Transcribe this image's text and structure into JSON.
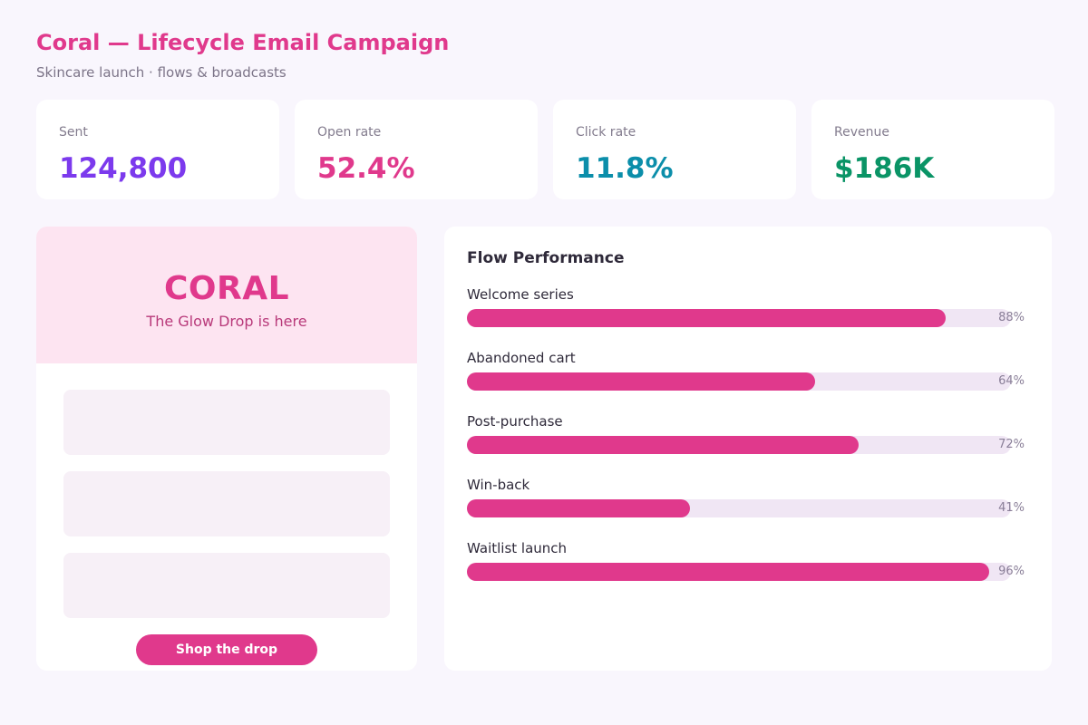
{
  "header": {
    "title": "Coral — Lifecycle Email Campaign",
    "subtitle": "Skincare launch · flows & broadcasts"
  },
  "kpis": [
    {
      "label": "Sent",
      "value": "124,800",
      "color": "#7c3aed"
    },
    {
      "label": "Open rate",
      "value": "52.4%",
      "color": "#e0398c"
    },
    {
      "label": "Click rate",
      "value": "11.8%",
      "color": "#0b8eaa"
    },
    {
      "label": "Revenue",
      "value": "$186K",
      "color": "#0a9466"
    }
  ],
  "email_preview": {
    "brand": "CORAL",
    "tagline": "The Glow Drop is here",
    "cta_label": "Shop the drop"
  },
  "flows": {
    "title": "Flow Performance",
    "items": [
      {
        "name": "Welcome series",
        "pct_label": "88%",
        "value": 0.88
      },
      {
        "name": "Abandoned cart",
        "pct_label": "64%",
        "value": 0.64
      },
      {
        "name": "Post-purchase",
        "pct_label": "72%",
        "value": 0.72
      },
      {
        "name": "Win-back",
        "pct_label": "41%",
        "value": 0.41
      },
      {
        "name": "Waitlist launch",
        "pct_label": "96%",
        "value": 0.96
      }
    ]
  },
  "colors": {
    "accent": "#e0398c",
    "background": "#f9f6fd",
    "track": "#f0e6f4"
  }
}
